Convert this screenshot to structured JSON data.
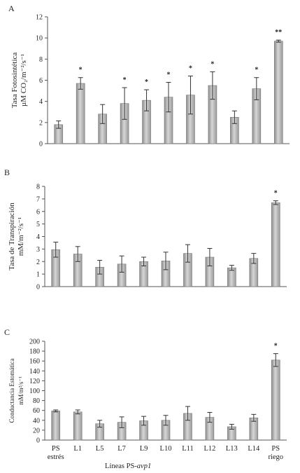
{
  "figure": {
    "categories": [
      "PS estrés",
      "L1",
      "L5",
      "L7",
      "L9",
      "L10",
      "L11",
      "L12",
      "L13",
      "L14",
      "PS riego"
    ],
    "xlabel": "Líneas PS-avp1"
  },
  "chart_data": [
    {
      "panel": "A",
      "type": "bar",
      "ylabel": "Tasa Fotosintética µM CO₂/m⁻²/s⁻¹",
      "ylim": [
        0,
        12
      ],
      "yticks": [
        0,
        2,
        4,
        6,
        8,
        10,
        12
      ],
      "values": [
        1.8,
        5.7,
        2.8,
        3.8,
        4.1,
        4.4,
        4.6,
        5.5,
        2.5,
        5.2,
        9.7
      ],
      "errors": [
        0.35,
        0.55,
        0.9,
        1.5,
        1.0,
        1.4,
        1.8,
        1.3,
        0.6,
        1.05,
        0.1
      ],
      "significance": [
        "",
        "*",
        "",
        "*",
        "*",
        "*",
        "*",
        "*",
        "",
        "*",
        "**"
      ]
    },
    {
      "panel": "B",
      "type": "bar",
      "ylabel": "Tasa de Transpiración mM/m⁻²/s⁻¹",
      "ylim": [
        0,
        8
      ],
      "yticks": [
        0,
        1,
        2,
        3,
        4,
        5,
        6,
        7,
        8
      ],
      "values": [
        2.95,
        2.6,
        1.55,
        1.8,
        2.0,
        2.05,
        2.65,
        2.35,
        1.5,
        2.25,
        6.7
      ],
      "errors": [
        0.6,
        0.6,
        0.55,
        0.65,
        0.35,
        0.7,
        0.7,
        0.7,
        0.2,
        0.4,
        0.15
      ],
      "significance": [
        "",
        "",
        "",
        "",
        "",
        "",
        "",
        "",
        "",
        "",
        "*"
      ]
    },
    {
      "panel": "C",
      "type": "bar",
      "ylabel": "Conductancia Estomática mM/m²/s⁻¹",
      "ylim": [
        0,
        200
      ],
      "yticks": [
        0,
        20,
        40,
        60,
        80,
        100,
        120,
        140,
        160,
        180,
        200
      ],
      "values": [
        59,
        57,
        33,
        36,
        39,
        40,
        54,
        46,
        27,
        45,
        162
      ],
      "errors": [
        2,
        4,
        7,
        11,
        9,
        10,
        14,
        10,
        5,
        7,
        13
      ],
      "significance": [
        "",
        "",
        "",
        "",
        "",
        "",
        "",
        "",
        "",
        "",
        "*"
      ]
    }
  ]
}
